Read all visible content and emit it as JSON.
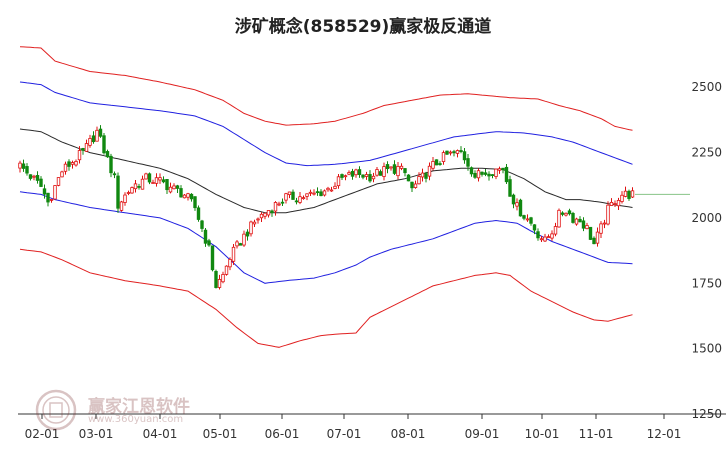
{
  "chart_data": {
    "type": "candlestick",
    "title": "涉矿概念(858529)赢家极反通道",
    "x_labels": [
      "02-01",
      "03-01",
      "04-01",
      "05-01",
      "06-01",
      "07-01",
      "08-01",
      "09-01",
      "10-01",
      "11-01",
      "12-01"
    ],
    "y_ticks": [
      1250,
      1500,
      1750,
      2000,
      2250,
      2500
    ],
    "ylim": [
      1250,
      2650
    ],
    "grid": false,
    "watermark": {
      "text": "赢家江恩软件",
      "url": "www.360yuan.com"
    },
    "last_price_line": 2090,
    "price_series": {
      "type": "candlestick",
      "anchors": [
        [
          0,
          2200
        ],
        [
          6,
          2120
        ],
        [
          8,
          2060
        ],
        [
          12,
          2180
        ],
        [
          18,
          2250
        ],
        [
          22,
          2330
        ],
        [
          24,
          2260
        ],
        [
          27,
          2150
        ],
        [
          28,
          2050
        ],
        [
          32,
          2120
        ],
        [
          36,
          2150
        ],
        [
          40,
          2140
        ],
        [
          44,
          2110
        ],
        [
          47,
          2090
        ],
        [
          50,
          2040
        ],
        [
          52,
          1960
        ],
        [
          54,
          1880
        ],
        [
          56,
          1740
        ],
        [
          58,
          1780
        ],
        [
          60,
          1850
        ],
        [
          64,
          1930
        ],
        [
          68,
          2000
        ],
        [
          72,
          2040
        ],
        [
          76,
          2080
        ],
        [
          80,
          2080
        ],
        [
          84,
          2090
        ],
        [
          88,
          2110
        ],
        [
          92,
          2150
        ],
        [
          96,
          2170
        ],
        [
          100,
          2160
        ],
        [
          104,
          2180
        ],
        [
          108,
          2190
        ],
        [
          110,
          2170
        ],
        [
          112,
          2110
        ],
        [
          114,
          2140
        ],
        [
          118,
          2200
        ],
        [
          122,
          2240
        ],
        [
          126,
          2250
        ],
        [
          128,
          2210
        ],
        [
          130,
          2160
        ],
        [
          134,
          2180
        ],
        [
          138,
          2190
        ],
        [
          140,
          2100
        ],
        [
          142,
          2040
        ],
        [
          144,
          2010
        ],
        [
          146,
          1980
        ],
        [
          148,
          1940
        ],
        [
          150,
          1910
        ],
        [
          152,
          1950
        ],
        [
          154,
          2010
        ],
        [
          156,
          2030
        ],
        [
          158,
          2000
        ],
        [
          160,
          1990
        ],
        [
          162,
          1960
        ],
        [
          164,
          1900
        ],
        [
          166,
          1960
        ],
        [
          168,
          2030
        ],
        [
          170,
          2070
        ],
        [
          172,
          2090
        ],
        [
          175,
          2090
        ]
      ]
    },
    "channels": [
      {
        "name": "outer-upper",
        "color": "#e02020",
        "points": [
          [
            0,
            2655
          ],
          [
            6,
            2650
          ],
          [
            10,
            2600
          ],
          [
            20,
            2560
          ],
          [
            30,
            2545
          ],
          [
            40,
            2520
          ],
          [
            50,
            2490
          ],
          [
            58,
            2450
          ],
          [
            64,
            2400
          ],
          [
            70,
            2370
          ],
          [
            76,
            2355
          ],
          [
            84,
            2360
          ],
          [
            90,
            2370
          ],
          [
            98,
            2400
          ],
          [
            104,
            2430
          ],
          [
            112,
            2450
          ],
          [
            120,
            2470
          ],
          [
            128,
            2475
          ],
          [
            136,
            2465
          ],
          [
            140,
            2460
          ],
          [
            148,
            2455
          ],
          [
            154,
            2430
          ],
          [
            160,
            2410
          ],
          [
            166,
            2380
          ],
          [
            170,
            2350
          ],
          [
            175,
            2335
          ]
        ]
      },
      {
        "name": "inner-upper",
        "color": "#2020e0",
        "points": [
          [
            0,
            2520
          ],
          [
            6,
            2510
          ],
          [
            10,
            2480
          ],
          [
            20,
            2440
          ],
          [
            30,
            2425
          ],
          [
            40,
            2410
          ],
          [
            50,
            2390
          ],
          [
            58,
            2350
          ],
          [
            64,
            2300
          ],
          [
            70,
            2250
          ],
          [
            76,
            2210
          ],
          [
            82,
            2200
          ],
          [
            90,
            2205
          ],
          [
            100,
            2220
          ],
          [
            108,
            2250
          ],
          [
            116,
            2280
          ],
          [
            124,
            2310
          ],
          [
            130,
            2320
          ],
          [
            136,
            2330
          ],
          [
            144,
            2325
          ],
          [
            152,
            2310
          ],
          [
            158,
            2290
          ],
          [
            164,
            2260
          ],
          [
            170,
            2230
          ],
          [
            175,
            2205
          ]
        ]
      },
      {
        "name": "middle",
        "color": "#2a2a2a",
        "points": [
          [
            0,
            2340
          ],
          [
            6,
            2330
          ],
          [
            12,
            2290
          ],
          [
            20,
            2250
          ],
          [
            30,
            2220
          ],
          [
            40,
            2190
          ],
          [
            48,
            2150
          ],
          [
            56,
            2090
          ],
          [
            64,
            2040
          ],
          [
            70,
            2020
          ],
          [
            76,
            2020
          ],
          [
            84,
            2040
          ],
          [
            90,
            2070
          ],
          [
            96,
            2100
          ],
          [
            102,
            2130
          ],
          [
            110,
            2150
          ],
          [
            118,
            2180
          ],
          [
            126,
            2190
          ],
          [
            132,
            2190
          ],
          [
            138,
            2185
          ],
          [
            144,
            2150
          ],
          [
            150,
            2100
          ],
          [
            156,
            2070
          ],
          [
            160,
            2070
          ],
          [
            166,
            2060
          ],
          [
            170,
            2050
          ],
          [
            175,
            2040
          ]
        ]
      },
      {
        "name": "inner-lower",
        "color": "#2020e0",
        "points": [
          [
            0,
            2100
          ],
          [
            6,
            2090
          ],
          [
            10,
            2070
          ],
          [
            20,
            2040
          ],
          [
            30,
            2020
          ],
          [
            40,
            2000
          ],
          [
            48,
            1960
          ],
          [
            56,
            1890
          ],
          [
            64,
            1790
          ],
          [
            70,
            1750
          ],
          [
            76,
            1760
          ],
          [
            84,
            1770
          ],
          [
            90,
            1790
          ],
          [
            96,
            1820
          ],
          [
            100,
            1850
          ],
          [
            106,
            1880
          ],
          [
            112,
            1900
          ],
          [
            118,
            1920
          ],
          [
            124,
            1950
          ],
          [
            130,
            1980
          ],
          [
            136,
            1990
          ],
          [
            142,
            1980
          ],
          [
            146,
            1950
          ],
          [
            152,
            1910
          ],
          [
            158,
            1880
          ],
          [
            164,
            1850
          ],
          [
            168,
            1830
          ],
          [
            175,
            1825
          ]
        ]
      },
      {
        "name": "outer-lower",
        "color": "#e02020",
        "points": [
          [
            0,
            1880
          ],
          [
            6,
            1870
          ],
          [
            12,
            1840
          ],
          [
            20,
            1790
          ],
          [
            30,
            1760
          ],
          [
            40,
            1740
          ],
          [
            48,
            1720
          ],
          [
            56,
            1650
          ],
          [
            62,
            1580
          ],
          [
            68,
            1520
          ],
          [
            74,
            1505
          ],
          [
            80,
            1530
          ],
          [
            86,
            1550
          ],
          [
            90,
            1555
          ],
          [
            96,
            1560
          ],
          [
            100,
            1620
          ],
          [
            106,
            1660
          ],
          [
            112,
            1700
          ],
          [
            118,
            1740
          ],
          [
            124,
            1760
          ],
          [
            130,
            1780
          ],
          [
            136,
            1790
          ],
          [
            140,
            1780
          ],
          [
            146,
            1720
          ],
          [
            152,
            1680
          ],
          [
            158,
            1640
          ],
          [
            164,
            1610
          ],
          [
            168,
            1605
          ],
          [
            175,
            1630
          ]
        ]
      }
    ]
  }
}
